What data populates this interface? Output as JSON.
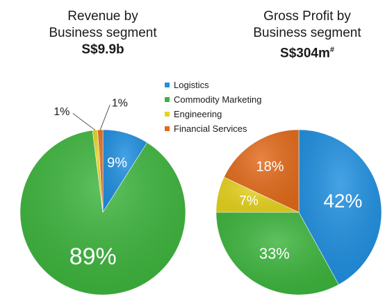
{
  "chart_data": [
    {
      "type": "pie",
      "title_line1": "Revenue by",
      "title_line2": "Business segment",
      "total": "S$9.9b",
      "total_footnote": "",
      "categories": [
        "Logistics",
        "Commodity Marketing",
        "Engineering",
        "Financial Services"
      ],
      "values": [
        9,
        89,
        1,
        1
      ],
      "labels": [
        "9%",
        "89%",
        "1%",
        "1%"
      ]
    },
    {
      "type": "pie",
      "title_line1": "Gross Profit by",
      "title_line2": "Business segment",
      "total": "S$304m",
      "total_footnote": "#",
      "categories": [
        "Logistics",
        "Commodity Marketing",
        "Engineering",
        "Financial Services"
      ],
      "values": [
        42,
        33,
        7,
        18
      ],
      "labels": [
        "42%",
        "33%",
        "7%",
        "18%"
      ]
    }
  ],
  "legend": [
    {
      "label": "Logistics",
      "color": "#1f8fe0"
    },
    {
      "label": "Commodity Marketing",
      "color": "#3cb43c"
    },
    {
      "label": "Engineering",
      "color": "#e6d21e"
    },
    {
      "label": "Financial Services",
      "color": "#e26a1a"
    }
  ]
}
